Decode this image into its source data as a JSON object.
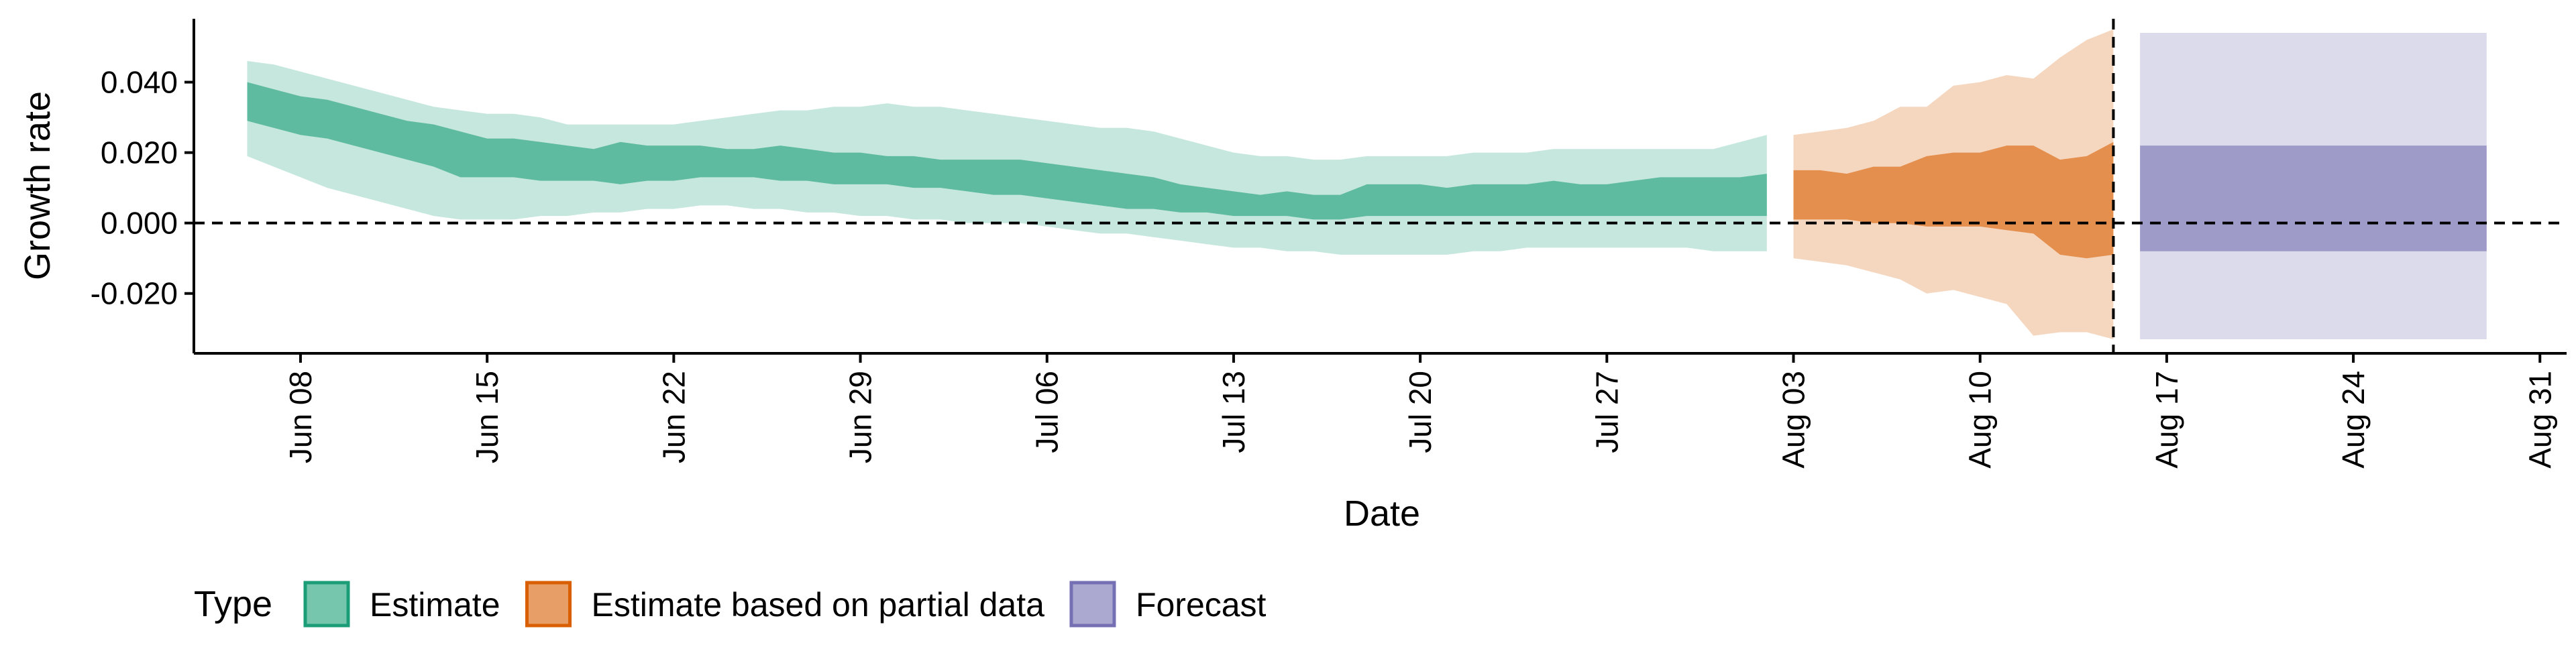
{
  "chart_data": {
    "type": "area",
    "xlabel": "Date",
    "ylabel": "Growth rate",
    "x_range": [
      "2020-06-04",
      "2020-09-01"
    ],
    "ylim": [
      -0.037,
      0.058
    ],
    "y_ticks": [
      {
        "value": 0.04,
        "label": "0.040"
      },
      {
        "value": 0.02,
        "label": "0.020"
      },
      {
        "value": 0.0,
        "label": "0.000"
      },
      {
        "value": -0.02,
        "label": "-0.020"
      }
    ],
    "x_ticks": [
      {
        "date": "2020-06-08",
        "label": "Jun 08"
      },
      {
        "date": "2020-06-15",
        "label": "Jun 15"
      },
      {
        "date": "2020-06-22",
        "label": "Jun 22"
      },
      {
        "date": "2020-06-29",
        "label": "Jun 29"
      },
      {
        "date": "2020-07-06",
        "label": "Jul 06"
      },
      {
        "date": "2020-07-13",
        "label": "Jul 13"
      },
      {
        "date": "2020-07-20",
        "label": "Jul 20"
      },
      {
        "date": "2020-07-27",
        "label": "Jul 27"
      },
      {
        "date": "2020-08-03",
        "label": "Aug 03"
      },
      {
        "date": "2020-08-10",
        "label": "Aug 10"
      },
      {
        "date": "2020-08-17",
        "label": "Aug 17"
      },
      {
        "date": "2020-08-24",
        "label": "Aug 24"
      },
      {
        "date": "2020-08-31",
        "label": "Aug 31"
      }
    ],
    "reference_lines": {
      "horizontal_y": 0.0,
      "vertical_date": "2020-08-15",
      "style": "dashed"
    },
    "grid": false,
    "legend": {
      "title": "Type",
      "position": "bottom",
      "entries": [
        {
          "label": "Estimate",
          "color": "#1b9e77"
        },
        {
          "label": "Estimate based on partial data",
          "color": "#d95f02"
        },
        {
          "label": "Forecast",
          "color": "#7570b3"
        }
      ]
    },
    "series": [
      {
        "name": "Estimate",
        "color": "#1b9e77",
        "points": [
          {
            "date": "2020-06-06",
            "lo90": 0.019,
            "lo50": 0.029,
            "hi50": 0.04,
            "hi90": 0.046
          },
          {
            "date": "2020-06-07",
            "lo90": 0.016,
            "lo50": 0.027,
            "hi50": 0.038,
            "hi90": 0.045
          },
          {
            "date": "2020-06-08",
            "lo90": 0.013,
            "lo50": 0.025,
            "hi50": 0.036,
            "hi90": 0.043
          },
          {
            "date": "2020-06-09",
            "lo90": 0.01,
            "lo50": 0.024,
            "hi50": 0.035,
            "hi90": 0.041
          },
          {
            "date": "2020-06-10",
            "lo90": 0.008,
            "lo50": 0.022,
            "hi50": 0.033,
            "hi90": 0.039
          },
          {
            "date": "2020-06-11",
            "lo90": 0.006,
            "lo50": 0.02,
            "hi50": 0.031,
            "hi90": 0.037
          },
          {
            "date": "2020-06-12",
            "lo90": 0.004,
            "lo50": 0.018,
            "hi50": 0.029,
            "hi90": 0.035
          },
          {
            "date": "2020-06-13",
            "lo90": 0.002,
            "lo50": 0.016,
            "hi50": 0.028,
            "hi90": 0.033
          },
          {
            "date": "2020-06-14",
            "lo90": 0.001,
            "lo50": 0.013,
            "hi50": 0.026,
            "hi90": 0.032
          },
          {
            "date": "2020-06-15",
            "lo90": 0.001,
            "lo50": 0.013,
            "hi50": 0.024,
            "hi90": 0.031
          },
          {
            "date": "2020-06-16",
            "lo90": 0.001,
            "lo50": 0.013,
            "hi50": 0.024,
            "hi90": 0.031
          },
          {
            "date": "2020-06-17",
            "lo90": 0.002,
            "lo50": 0.012,
            "hi50": 0.023,
            "hi90": 0.03
          },
          {
            "date": "2020-06-18",
            "lo90": 0.002,
            "lo50": 0.012,
            "hi50": 0.022,
            "hi90": 0.028
          },
          {
            "date": "2020-06-19",
            "lo90": 0.003,
            "lo50": 0.012,
            "hi50": 0.021,
            "hi90": 0.028
          },
          {
            "date": "2020-06-20",
            "lo90": 0.003,
            "lo50": 0.011,
            "hi50": 0.023,
            "hi90": 0.028
          },
          {
            "date": "2020-06-21",
            "lo90": 0.004,
            "lo50": 0.012,
            "hi50": 0.022,
            "hi90": 0.028
          },
          {
            "date": "2020-06-22",
            "lo90": 0.004,
            "lo50": 0.012,
            "hi50": 0.022,
            "hi90": 0.028
          },
          {
            "date": "2020-06-23",
            "lo90": 0.005,
            "lo50": 0.013,
            "hi50": 0.022,
            "hi90": 0.029
          },
          {
            "date": "2020-06-24",
            "lo90": 0.005,
            "lo50": 0.013,
            "hi50": 0.021,
            "hi90": 0.03
          },
          {
            "date": "2020-06-25",
            "lo90": 0.004,
            "lo50": 0.013,
            "hi50": 0.021,
            "hi90": 0.031
          },
          {
            "date": "2020-06-26",
            "lo90": 0.004,
            "lo50": 0.012,
            "hi50": 0.022,
            "hi90": 0.032
          },
          {
            "date": "2020-06-27",
            "lo90": 0.003,
            "lo50": 0.012,
            "hi50": 0.021,
            "hi90": 0.032
          },
          {
            "date": "2020-06-28",
            "lo90": 0.003,
            "lo50": 0.011,
            "hi50": 0.02,
            "hi90": 0.033
          },
          {
            "date": "2020-06-29",
            "lo90": 0.002,
            "lo50": 0.011,
            "hi50": 0.02,
            "hi90": 0.033
          },
          {
            "date": "2020-06-30",
            "lo90": 0.002,
            "lo50": 0.011,
            "hi50": 0.019,
            "hi90": 0.034
          },
          {
            "date": "2020-07-01",
            "lo90": 0.001,
            "lo50": 0.01,
            "hi50": 0.019,
            "hi90": 0.033
          },
          {
            "date": "2020-07-02",
            "lo90": 0.001,
            "lo50": 0.01,
            "hi50": 0.018,
            "hi90": 0.033
          },
          {
            "date": "2020-07-03",
            "lo90": 0.0,
            "lo50": 0.009,
            "hi50": 0.018,
            "hi90": 0.032
          },
          {
            "date": "2020-07-04",
            "lo90": 0.0,
            "lo50": 0.008,
            "hi50": 0.018,
            "hi90": 0.031
          },
          {
            "date": "2020-07-05",
            "lo90": 0.0,
            "lo50": 0.008,
            "hi50": 0.018,
            "hi90": 0.03
          },
          {
            "date": "2020-07-06",
            "lo90": -0.001,
            "lo50": 0.007,
            "hi50": 0.017,
            "hi90": 0.029
          },
          {
            "date": "2020-07-07",
            "lo90": -0.002,
            "lo50": 0.006,
            "hi50": 0.016,
            "hi90": 0.028
          },
          {
            "date": "2020-07-08",
            "lo90": -0.003,
            "lo50": 0.005,
            "hi50": 0.015,
            "hi90": 0.027
          },
          {
            "date": "2020-07-09",
            "lo90": -0.003,
            "lo50": 0.004,
            "hi50": 0.014,
            "hi90": 0.027
          },
          {
            "date": "2020-07-10",
            "lo90": -0.004,
            "lo50": 0.004,
            "hi50": 0.013,
            "hi90": 0.026
          },
          {
            "date": "2020-07-11",
            "lo90": -0.005,
            "lo50": 0.003,
            "hi50": 0.011,
            "hi90": 0.024
          },
          {
            "date": "2020-07-12",
            "lo90": -0.006,
            "lo50": 0.003,
            "hi50": 0.01,
            "hi90": 0.022
          },
          {
            "date": "2020-07-13",
            "lo90": -0.007,
            "lo50": 0.002,
            "hi50": 0.009,
            "hi90": 0.02
          },
          {
            "date": "2020-07-14",
            "lo90": -0.007,
            "lo50": 0.002,
            "hi50": 0.008,
            "hi90": 0.019
          },
          {
            "date": "2020-07-15",
            "lo90": -0.008,
            "lo50": 0.002,
            "hi50": 0.009,
            "hi90": 0.019
          },
          {
            "date": "2020-07-16",
            "lo90": -0.008,
            "lo50": 0.001,
            "hi50": 0.008,
            "hi90": 0.018
          },
          {
            "date": "2020-07-17",
            "lo90": -0.009,
            "lo50": 0.001,
            "hi50": 0.008,
            "hi90": 0.018
          },
          {
            "date": "2020-07-18",
            "lo90": -0.009,
            "lo50": 0.002,
            "hi50": 0.011,
            "hi90": 0.019
          },
          {
            "date": "2020-07-19",
            "lo90": -0.009,
            "lo50": 0.002,
            "hi50": 0.011,
            "hi90": 0.019
          },
          {
            "date": "2020-07-20",
            "lo90": -0.009,
            "lo50": 0.002,
            "hi50": 0.011,
            "hi90": 0.019
          },
          {
            "date": "2020-07-21",
            "lo90": -0.009,
            "lo50": 0.002,
            "hi50": 0.01,
            "hi90": 0.019
          },
          {
            "date": "2020-07-22",
            "lo90": -0.008,
            "lo50": 0.002,
            "hi50": 0.011,
            "hi90": 0.02
          },
          {
            "date": "2020-07-23",
            "lo90": -0.008,
            "lo50": 0.002,
            "hi50": 0.011,
            "hi90": 0.02
          },
          {
            "date": "2020-07-24",
            "lo90": -0.007,
            "lo50": 0.002,
            "hi50": 0.011,
            "hi90": 0.02
          },
          {
            "date": "2020-07-25",
            "lo90": -0.007,
            "lo50": 0.002,
            "hi50": 0.012,
            "hi90": 0.021
          },
          {
            "date": "2020-07-26",
            "lo90": -0.007,
            "lo50": 0.002,
            "hi50": 0.011,
            "hi90": 0.021
          },
          {
            "date": "2020-07-27",
            "lo90": -0.007,
            "lo50": 0.002,
            "hi50": 0.011,
            "hi90": 0.021
          },
          {
            "date": "2020-07-28",
            "lo90": -0.007,
            "lo50": 0.002,
            "hi50": 0.012,
            "hi90": 0.021
          },
          {
            "date": "2020-07-29",
            "lo90": -0.007,
            "lo50": 0.002,
            "hi50": 0.013,
            "hi90": 0.021
          },
          {
            "date": "2020-07-30",
            "lo90": -0.007,
            "lo50": 0.002,
            "hi50": 0.013,
            "hi90": 0.021
          },
          {
            "date": "2020-07-31",
            "lo90": -0.008,
            "lo50": 0.002,
            "hi50": 0.013,
            "hi90": 0.021
          },
          {
            "date": "2020-08-01",
            "lo90": -0.008,
            "lo50": 0.002,
            "hi50": 0.013,
            "hi90": 0.023
          },
          {
            "date": "2020-08-02",
            "lo90": -0.008,
            "lo50": 0.002,
            "hi50": 0.014,
            "hi90": 0.025
          }
        ]
      },
      {
        "name": "Estimate based on partial data",
        "color": "#d95f02",
        "points": [
          {
            "date": "2020-08-03",
            "lo90": -0.01,
            "lo50": 0.001,
            "hi50": 0.015,
            "hi90": 0.025
          },
          {
            "date": "2020-08-04",
            "lo90": -0.011,
            "lo50": 0.001,
            "hi50": 0.015,
            "hi90": 0.026
          },
          {
            "date": "2020-08-05",
            "lo90": -0.012,
            "lo50": 0.001,
            "hi50": 0.014,
            "hi90": 0.027
          },
          {
            "date": "2020-08-06",
            "lo90": -0.014,
            "lo50": 0.0,
            "hi50": 0.016,
            "hi90": 0.029
          },
          {
            "date": "2020-08-07",
            "lo90": -0.016,
            "lo50": 0.0,
            "hi50": 0.016,
            "hi90": 0.033
          },
          {
            "date": "2020-08-08",
            "lo90": -0.02,
            "lo50": -0.001,
            "hi50": 0.019,
            "hi90": 0.033
          },
          {
            "date": "2020-08-09",
            "lo90": -0.019,
            "lo50": -0.001,
            "hi50": 0.02,
            "hi90": 0.039
          },
          {
            "date": "2020-08-10",
            "lo90": -0.021,
            "lo50": -0.001,
            "hi50": 0.02,
            "hi90": 0.04
          },
          {
            "date": "2020-08-11",
            "lo90": -0.023,
            "lo50": -0.002,
            "hi50": 0.022,
            "hi90": 0.042
          },
          {
            "date": "2020-08-12",
            "lo90": -0.032,
            "lo50": -0.003,
            "hi50": 0.022,
            "hi90": 0.041
          },
          {
            "date": "2020-08-13",
            "lo90": -0.031,
            "lo50": -0.009,
            "hi50": 0.018,
            "hi90": 0.047
          },
          {
            "date": "2020-08-14",
            "lo90": -0.031,
            "lo50": -0.01,
            "hi50": 0.019,
            "hi90": 0.052
          },
          {
            "date": "2020-08-15",
            "lo90": -0.033,
            "lo50": -0.009,
            "hi50": 0.023,
            "hi90": 0.055
          }
        ]
      },
      {
        "name": "Forecast",
        "color": "#7570b3",
        "points": [
          {
            "date": "2020-08-16",
            "lo90": -0.033,
            "lo50": -0.008,
            "hi50": 0.022,
            "hi90": 0.054
          },
          {
            "date": "2020-08-29",
            "lo90": -0.033,
            "lo50": -0.008,
            "hi50": 0.022,
            "hi90": 0.054
          }
        ]
      }
    ]
  }
}
